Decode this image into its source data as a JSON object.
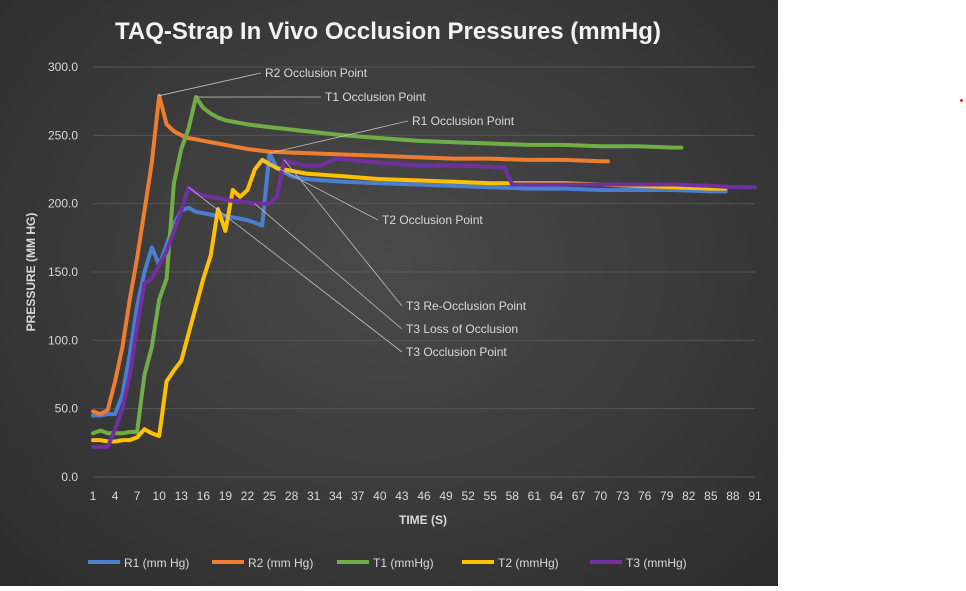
{
  "chart_data": {
    "type": "line",
    "title": "TAQ-Strap In Vivo Occlusion Pressures (mmHg)",
    "xlabel": "TIME (S)",
    "ylabel": "PRESSURE (MM HG)",
    "ylim": [
      0,
      300
    ],
    "yticks": [
      "0.0",
      "50.0",
      "100.0",
      "150.0",
      "200.0",
      "250.0",
      "300.0"
    ],
    "xticks": [
      "1",
      "4",
      "7",
      "10",
      "13",
      "16",
      "19",
      "22",
      "25",
      "28",
      "31",
      "34",
      "37",
      "40",
      "43",
      "46",
      "49",
      "52",
      "55",
      "58",
      "61",
      "64",
      "67",
      "70",
      "73",
      "76",
      "79",
      "82",
      "85",
      "88",
      "91"
    ],
    "xlim": [
      1,
      91
    ],
    "grid": "horizontal",
    "legend_position": "bottom",
    "colors": {
      "background": "#3a3a3a",
      "grid": "#555555"
    },
    "series": [
      {
        "name": "R1 (mm Hg)",
        "color": "#4a7fd0",
        "x": [
          1,
          2,
          3,
          4,
          5,
          6,
          7,
          8,
          9,
          10,
          11,
          12,
          13,
          14,
          15,
          16,
          17,
          18,
          19,
          20,
          21,
          22,
          23,
          24,
          25,
          26,
          28,
          30,
          35,
          40,
          45,
          50,
          55,
          60,
          65,
          70,
          75,
          80,
          85,
          87
        ],
        "y": [
          45,
          45,
          46,
          46,
          60,
          90,
          125,
          150,
          168,
          155,
          170,
          185,
          195,
          197,
          194,
          193,
          192,
          191,
          191,
          190,
          189,
          188,
          186,
          184,
          237,
          226,
          220,
          218,
          216,
          215,
          214,
          213,
          212,
          211,
          211,
          210,
          210,
          210,
          209,
          209
        ]
      },
      {
        "name": "R2 (mm Hg)",
        "color": "#ed7d31",
        "x": [
          1,
          2,
          3,
          4,
          5,
          6,
          7,
          8,
          9,
          10,
          11,
          12,
          13,
          14,
          15,
          16,
          18,
          20,
          22,
          25,
          30,
          35,
          40,
          45,
          50,
          55,
          60,
          65,
          70,
          71
        ],
        "y": [
          48,
          46,
          49,
          70,
          95,
          130,
          160,
          195,
          230,
          279,
          258,
          253,
          250,
          248,
          247,
          246,
          244,
          242,
          240,
          238,
          237,
          236,
          235,
          234,
          233,
          233,
          232,
          232,
          231,
          231
        ]
      },
      {
        "name": "T1 (mmHg)",
        "color": "#70ad47",
        "x": [
          1,
          2,
          3,
          4,
          5,
          6,
          7,
          8,
          9,
          10,
          11,
          12,
          13,
          14,
          15,
          16,
          17,
          18,
          19,
          20,
          22,
          25,
          30,
          35,
          40,
          45,
          50,
          55,
          60,
          65,
          70,
          75,
          80,
          81
        ],
        "y": [
          32,
          34,
          32,
          32,
          32,
          33,
          33,
          75,
          95,
          130,
          145,
          215,
          240,
          255,
          278,
          270,
          266,
          263,
          261,
          260,
          258,
          256,
          253,
          250,
          248,
          246,
          245,
          244,
          243,
          243,
          242,
          242,
          241,
          241
        ]
      },
      {
        "name": "T2 (mmHg)",
        "color": "#ffc000",
        "x": [
          1,
          2,
          3,
          4,
          5,
          6,
          7,
          8,
          9,
          10,
          11,
          12,
          13,
          14,
          15,
          16,
          17,
          18,
          19,
          20,
          21,
          22,
          23,
          24,
          25,
          26,
          28,
          30,
          35,
          40,
          45,
          50,
          55,
          60,
          65,
          70,
          75,
          80,
          85,
          87
        ],
        "y": [
          27,
          27,
          26,
          26,
          27,
          27,
          29,
          35,
          32,
          30,
          70,
          78,
          85,
          105,
          125,
          145,
          162,
          196,
          180,
          210,
          205,
          210,
          225,
          232,
          229,
          226,
          224,
          222,
          220,
          218,
          217,
          216,
          215,
          215,
          215,
          214,
          213,
          212,
          211,
          211
        ]
      },
      {
        "name": "T3 (mmHg)",
        "color": "#7030a0",
        "x": [
          1,
          2,
          3,
          4,
          5,
          6,
          7,
          8,
          9,
          10,
          11,
          12,
          13,
          14,
          15,
          16,
          17,
          18,
          19,
          20,
          21,
          22,
          23,
          24,
          25,
          26,
          27,
          28,
          30,
          32,
          34,
          36,
          40,
          45,
          50,
          55,
          57,
          58,
          60,
          65,
          70,
          75,
          80,
          85,
          88,
          91
        ],
        "y": [
          22,
          22,
          22,
          35,
          50,
          75,
          110,
          142,
          145,
          155,
          165,
          180,
          195,
          212,
          208,
          206,
          205,
          204,
          203,
          202,
          202,
          201,
          200,
          200,
          200,
          205,
          232,
          230,
          228,
          228,
          233,
          232,
          230,
          228,
          228,
          227,
          226,
          214,
          214,
          214,
          214,
          214,
          214,
          213,
          212,
          212
        ]
      }
    ],
    "annotations": [
      {
        "label": "R2 Occlusion Point",
        "x": 10,
        "y": 279
      },
      {
        "label": "T1 Occlusion Point",
        "x": 15,
        "y": 278
      },
      {
        "label": "R1 Occlusion Point",
        "x": 25,
        "y": 237
      },
      {
        "label": "T2 Occlusion Point",
        "x": 24,
        "y": 232
      },
      {
        "label": "T3 Re-Occlusion Point",
        "x": 27,
        "y": 232
      },
      {
        "label": "T3 Loss of Occlusion",
        "x": 23,
        "y": 200
      },
      {
        "label": "T3 Occlusion Point",
        "x": 14,
        "y": 212
      }
    ]
  }
}
